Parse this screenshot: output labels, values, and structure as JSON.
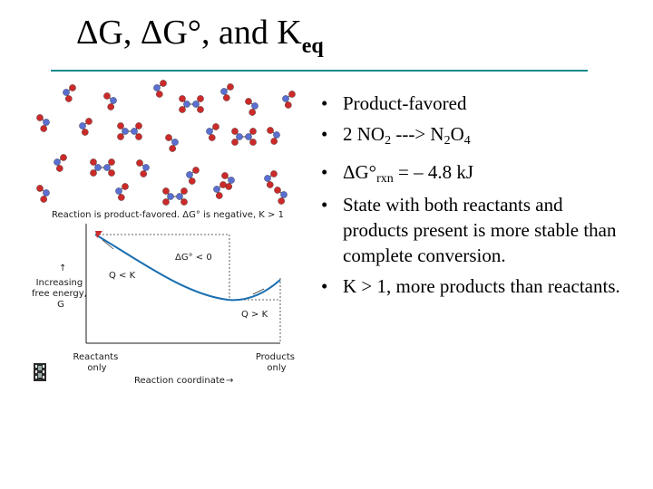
{
  "slide": {
    "title": {
      "prefix": "ΔG, ΔG°, and K",
      "subscript": "eq"
    },
    "figure": {
      "caption": "Reaction is product-favored.  ΔG° is negative, K > 1",
      "dg_label": "ΔG° < 0",
      "q_lt_k": "Q < K",
      "q_gt_k": "Q > K",
      "y_label": [
        "Increasing",
        "free energy,",
        "G"
      ],
      "reactants_label": [
        "Reactants",
        "only"
      ],
      "products_label": [
        "Products",
        "only"
      ],
      "x_label": "Reaction coordinate",
      "icon": "film-icon"
    },
    "bullets": [
      {
        "text": "Product-favored"
      },
      {
        "parts": [
          "2 NO",
          "2",
          " ---> N",
          "2",
          "O",
          "4"
        ]
      },
      {
        "parts": [
          "ΔG°",
          "rxn",
          " =  – 4.8 kJ"
        ]
      },
      {
        "text": "State with both reactants and products present is more stable than complete conversion."
      },
      {
        "text": "K > 1, more products than reactants."
      }
    ],
    "colors": {
      "rule": "#1a8a8a",
      "curve": "#1a6fb0",
      "atom_red": "#cc2a2a",
      "atom_blue": "#5a6fd1"
    }
  }
}
